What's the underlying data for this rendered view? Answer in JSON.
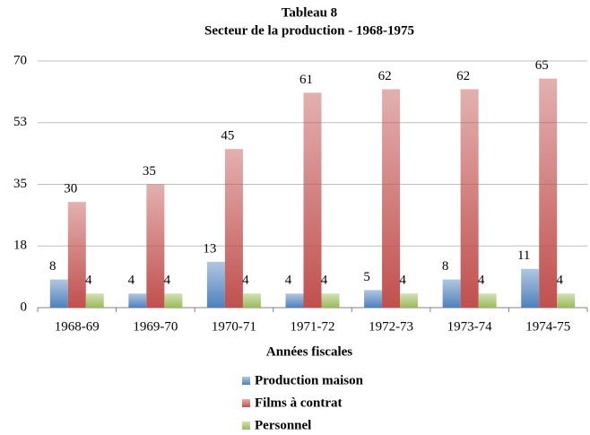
{
  "chart_data": {
    "type": "bar",
    "title": "Tableau 8",
    "subtitle": "Secteur de la production  - 1968-1975",
    "x_label": "Années fiscales",
    "categories": [
      "1968-69",
      "1969-70",
      "1970-71",
      "1971-72",
      "1972-73",
      "1973-74",
      "1974-75"
    ],
    "series": [
      {
        "name": "Production maison",
        "color": "#4f81bd",
        "values": [
          8,
          4,
          13,
          4,
          5,
          8,
          11
        ]
      },
      {
        "name": "Films à contrat",
        "color": "#c0504d",
        "values": [
          30,
          35,
          45,
          61,
          62,
          62,
          65
        ]
      },
      {
        "name": "Personnel",
        "color": "#9bbb59",
        "values": [
          4,
          4,
          4,
          4,
          4,
          4,
          4
        ]
      }
    ],
    "ylim": [
      0,
      70
    ],
    "yticks": [
      0,
      {
        "value": 17.5,
        "label": "18"
      },
      35,
      {
        "value": 52.5,
        "label": "53"
      },
      70
    ],
    "grid": true,
    "legend": "bottom"
  }
}
